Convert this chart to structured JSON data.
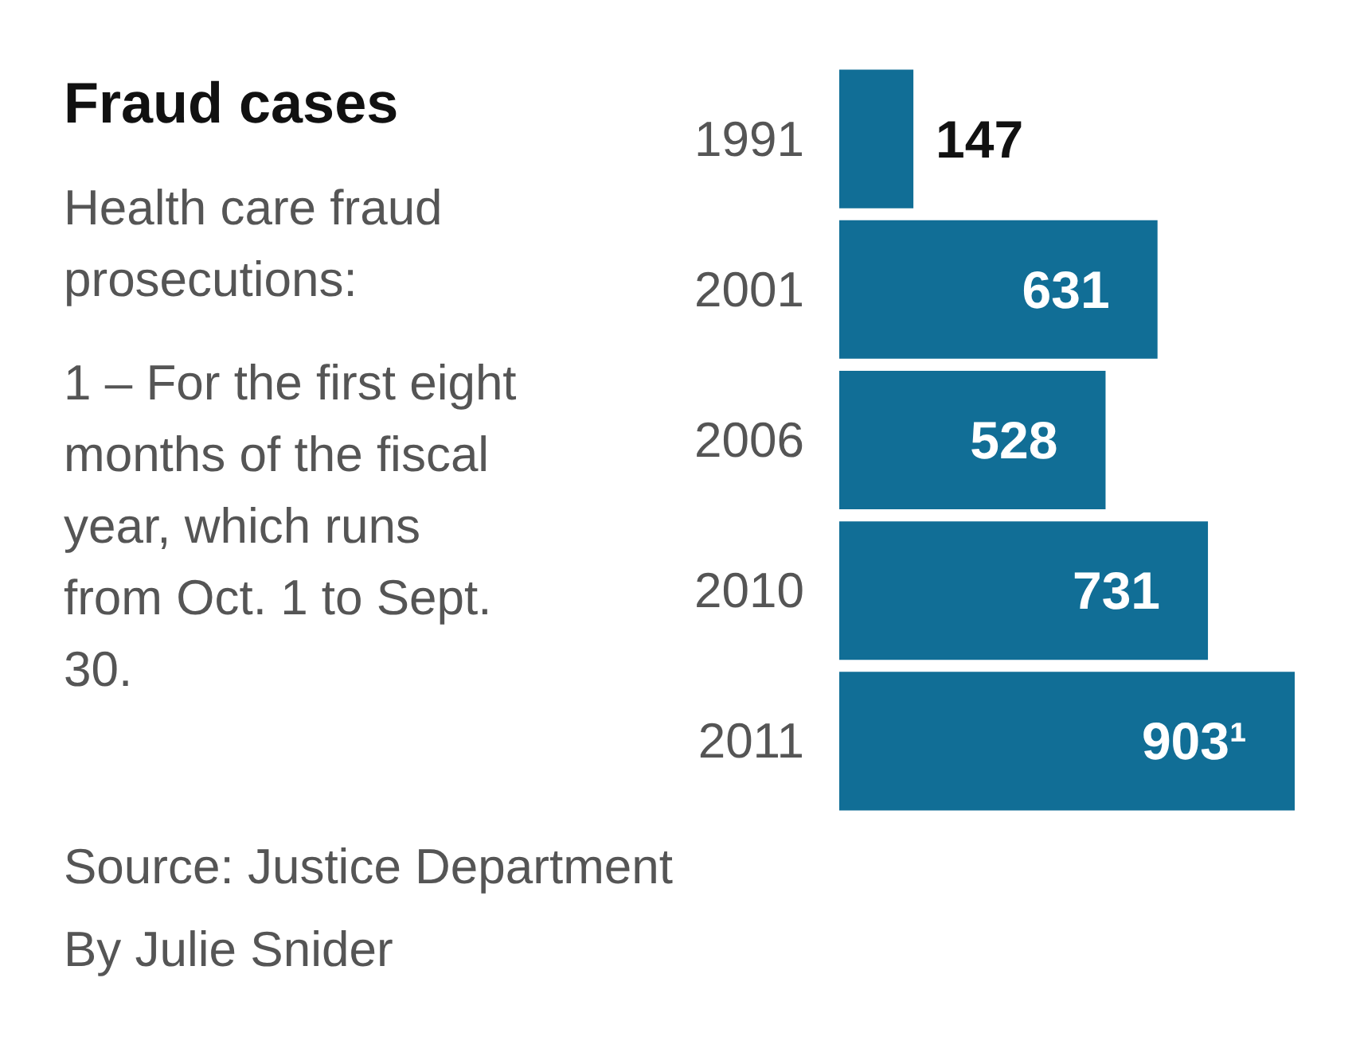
{
  "chart_data": {
    "type": "bar",
    "orientation": "horizontal",
    "title": "Fraud cases",
    "subtitle": "Health care fraud prosecutions:",
    "categories": [
      "1991",
      "2001",
      "2006",
      "2010",
      "2011"
    ],
    "values": [
      147,
      631,
      528,
      731,
      903
    ],
    "value_labels": [
      "147",
      "631",
      "528",
      "731",
      "903¹"
    ],
    "color": "#116e96",
    "annotations": [
      "1 – For the first eight months of the fiscal year, which runs from Oct. 1 to Sept. 30.",
      "Source: Justice Department",
      "By Julie Snider"
    ]
  }
}
